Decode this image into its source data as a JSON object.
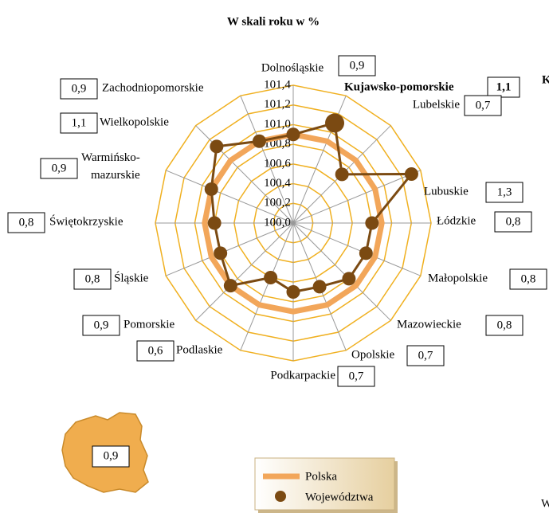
{
  "chart_data": {
    "type": "radar",
    "title": "W skali roku w %",
    "categories": [
      "Dolnośląskie",
      "Kujawsko-pomorskie",
      "Lubelskie",
      "Lubuskie",
      "Łódzkie",
      "Małopolskie",
      "Mazowieckie",
      "Opolskie",
      "Podkarpackie",
      "Podlaskie",
      "Pomorskie",
      "Śląskie",
      "Świętokrzyskie",
      "Warmińsko-mazurskie",
      "Wielkopolskie",
      "Zachodniopomorskie"
    ],
    "series": [
      {
        "name": "Polska",
        "color": "#f2a65a",
        "values": [
          100.9,
          100.9,
          100.9,
          100.9,
          100.9,
          100.9,
          100.9,
          100.9,
          100.9,
          100.9,
          100.9,
          100.9,
          100.9,
          100.9,
          100.9,
          100.9
        ]
      },
      {
        "name": "Województwa",
        "color": "#7b4a12",
        "values": [
          100.9,
          101.1,
          100.7,
          101.3,
          100.8,
          100.8,
          100.8,
          100.7,
          100.7,
          100.6,
          100.9,
          100.8,
          100.8,
          100.9,
          101.1,
          100.9
        ],
        "value_labels": [
          "0,9",
          "1,1",
          "0,7",
          "1,3",
          "0,8",
          "0,8",
          "0,8",
          "0,7",
          "0,7",
          "0,6",
          "0,9",
          "0,8",
          "0,8",
          "0,9",
          "1,1",
          "0,9"
        ]
      }
    ],
    "highlight_category": 1,
    "ylim": [
      100.0,
      101.4
    ],
    "yticks": [
      {
        "value": 100.0,
        "label": "100,0"
      },
      {
        "value": 100.2,
        "label": "100,2"
      },
      {
        "value": 100.4,
        "label": "100,4"
      },
      {
        "value": 100.6,
        "label": "100,6"
      },
      {
        "value": 100.8,
        "label": "100,8"
      },
      {
        "value": 101.0,
        "label": "101,0"
      },
      {
        "value": 101.2,
        "label": "101,2"
      },
      {
        "value": 101.4,
        "label": "101,4"
      }
    ],
    "grid_color": "#f0b020",
    "map_label": "0,9",
    "cut_off_texts": [
      "K",
      "W"
    ]
  }
}
